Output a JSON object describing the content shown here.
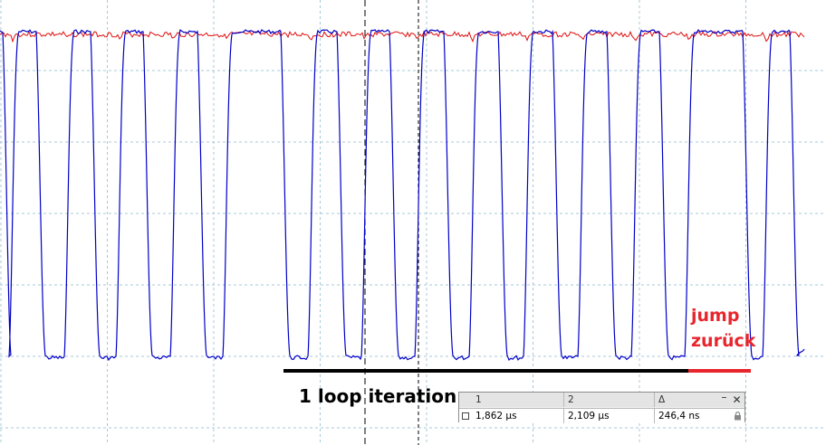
{
  "annotations": {
    "loop_label": "1 loop iteration",
    "jump_line1": "jump",
    "jump_line2": "zurück"
  },
  "colors": {
    "blue_trace": "#0000c8",
    "red_trace": "#e01010",
    "grid": "#a8c8d8",
    "loop_bar": "#000000",
    "jump_bar": "#e8252d"
  },
  "cursor_panel": {
    "col1_header": "1",
    "col2_header": "2",
    "col3_header": "Δ",
    "col1_value": "1,862 µs",
    "col2_value": "2,109 µs",
    "col3_value": "246,4 ns",
    "minimize_label": "–",
    "close_label": "✕",
    "lock_icon": "lock-icon"
  }
}
